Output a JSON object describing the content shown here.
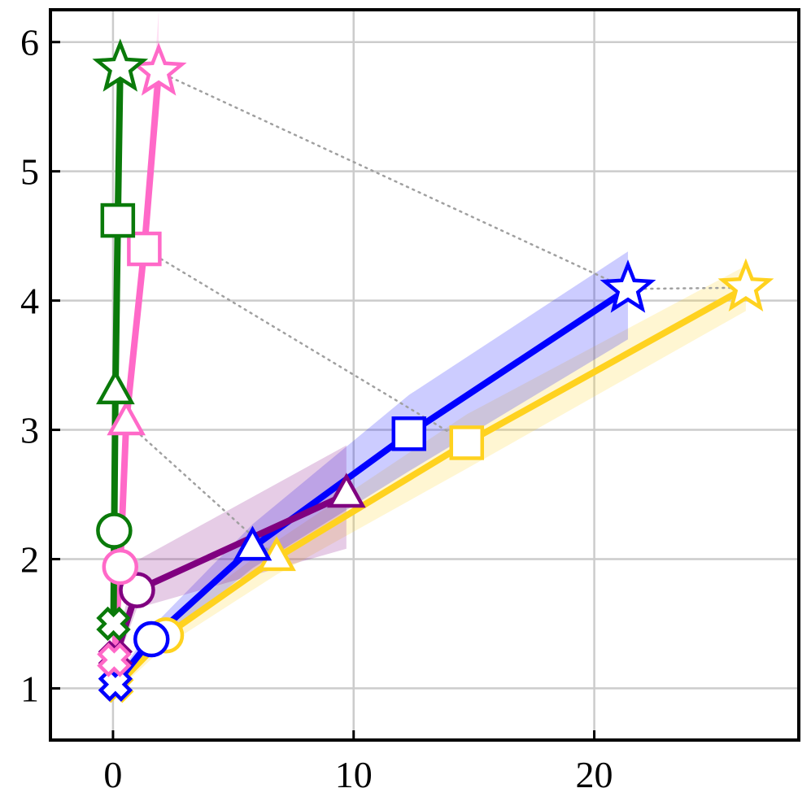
{
  "chart_data": {
    "type": "line",
    "title": "",
    "xlabel": "",
    "ylabel": "",
    "xlim": [
      -2.6,
      28.5
    ],
    "ylim": [
      0.6,
      6.25
    ],
    "xticks": [
      0,
      10,
      20
    ],
    "yticks": [
      1,
      2,
      3,
      4,
      5,
      6
    ],
    "xtick_labels": [
      "0",
      "10",
      "20"
    ],
    "ytick_labels": [
      "1",
      "2",
      "3",
      "4",
      "5",
      "6"
    ],
    "grid": true,
    "legend": "none",
    "series": [
      {
        "color": "#ffd21f",
        "markers": [
          "cross",
          "circle",
          "triangle",
          "square",
          "star"
        ],
        "x": [
          0.15,
          2.2,
          6.8,
          14.7,
          26.3
        ],
        "y": [
          1.02,
          1.41,
          2.01,
          2.9,
          4.1
        ],
        "band_lower": [
          0.98,
          1.33,
          1.88,
          2.7,
          3.92
        ],
        "band_upper": [
          1.06,
          1.5,
          2.14,
          3.12,
          4.27
        ]
      },
      {
        "color": "#0000ff",
        "markers": [
          "cross",
          "circle",
          "triangle",
          "square",
          "star"
        ],
        "x": [
          0.1,
          1.6,
          5.8,
          12.3,
          21.4
        ],
        "y": [
          1.03,
          1.38,
          2.09,
          2.97,
          4.09
        ],
        "band_lower": [
          0.99,
          1.3,
          1.93,
          2.68,
          3.7
        ],
        "band_upper": [
          1.07,
          1.47,
          2.27,
          3.27,
          4.38
        ]
      },
      {
        "color": "#800080",
        "markers": [
          "cross",
          "circle",
          "triangle"
        ],
        "x": [
          0.1,
          1.0,
          9.7
        ],
        "y": [
          1.24,
          1.76,
          2.5
        ],
        "band_lower": [
          1.17,
          1.62,
          2.08
        ],
        "band_upper": [
          1.32,
          1.99,
          2.88
        ]
      },
      {
        "color": "#ff69c8",
        "markers": [
          "cross",
          "circle",
          "triangle",
          "square",
          "star"
        ],
        "x": [
          0.05,
          0.3,
          0.55,
          1.3,
          1.9
        ],
        "y": [
          1.22,
          1.94,
          3.06,
          4.4,
          5.77
        ],
        "band_lower": [
          1.17,
          1.86,
          2.92,
          4.22,
          5.45
        ],
        "band_upper": [
          1.27,
          2.02,
          3.2,
          4.62,
          6.25
        ]
      },
      {
        "color": "#0a7a0a",
        "markers": [
          "cross",
          "circle",
          "triangle",
          "square",
          "star"
        ],
        "x": [
          0.02,
          0.05,
          0.1,
          0.2,
          0.3
        ],
        "y": [
          1.5,
          2.22,
          3.3,
          4.62,
          5.8
        ],
        "band_lower": [
          1.46,
          2.15,
          3.18,
          4.48,
          5.62
        ],
        "band_upper": [
          1.54,
          2.29,
          3.42,
          4.76,
          5.98
        ]
      }
    ],
    "connector_color": "#a0a0a0",
    "connectors": [
      {
        "x": [
          1.9,
          21.4,
          26.3
        ],
        "y": [
          5.77,
          4.09,
          4.1
        ]
      },
      {
        "x": [
          1.3,
          14.7
        ],
        "y": [
          4.4,
          2.9
        ]
      },
      {
        "x": [
          0.55,
          6.8
        ],
        "y": [
          3.06,
          2.01
        ]
      }
    ]
  }
}
